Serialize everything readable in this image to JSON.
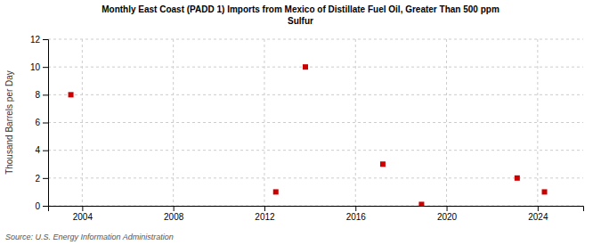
{
  "chart_data": {
    "type": "scatter",
    "title": "Monthly East Coast (PADD 1) Imports from Mexico of Distillate Fuel Oil, Greater Than 500 ppm\nSulfur",
    "ylabel": "Thousand Barrels per Day",
    "source": "Source: U.S. Energy Information Administration",
    "x": [
      2003.5,
      2012.5,
      2013.8,
      2017.2,
      2018.9,
      2023.1,
      2024.3
    ],
    "values": [
      8.0,
      1.0,
      10.0,
      3.0,
      0.1,
      2.0,
      1.0
    ],
    "color": "#cc0000",
    "marker": "square",
    "xlim": [
      2002.5,
      2026.0
    ],
    "ylim": [
      0,
      12
    ],
    "xticks": [
      2004,
      2008,
      2012,
      2016,
      2020,
      2024
    ],
    "yticks": [
      0,
      2,
      4,
      6,
      8,
      10,
      12
    ],
    "grid": true
  }
}
